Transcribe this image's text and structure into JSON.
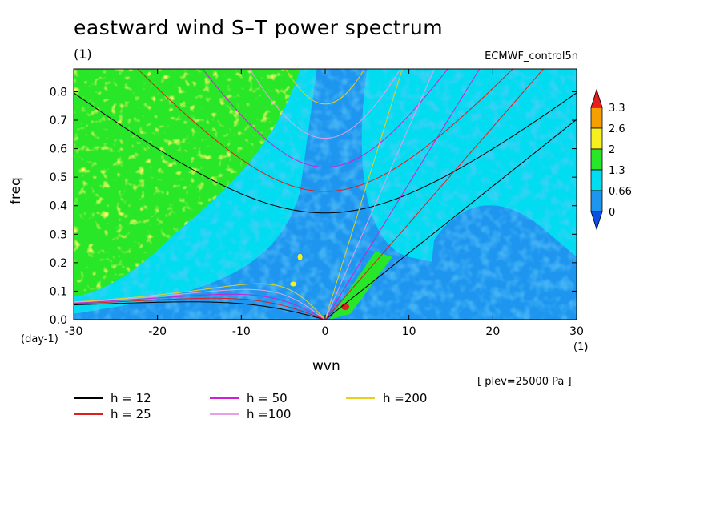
{
  "header": {
    "title": "eastward wind S–T power spectrum",
    "subtitle": "(1)",
    "dataset": "ECMWF_control5n",
    "plev_note": "[ plev=25000 Pa ]"
  },
  "chart_data": {
    "type": "heatmap",
    "title": "eastward wind S–T power spectrum",
    "xlabel": "wvn",
    "ylabel": "freq",
    "x_unit": "(1)",
    "y_unit": "(day-1)",
    "xlim": [
      -30,
      30
    ],
    "ylim": [
      0,
      0.88
    ],
    "xticks": [
      -30,
      -20,
      -10,
      0,
      10,
      20,
      30
    ],
    "xtick_labels": [
      "-30",
      "-20",
      "-10",
      "0",
      "10",
      "20",
      "30"
    ],
    "yticks": [
      0.0,
      0.1,
      0.2,
      0.3,
      0.4,
      0.5,
      0.6,
      0.7,
      0.8
    ],
    "ytick_labels": [
      "0.0",
      "0.1",
      "0.2",
      "0.3",
      "0.4",
      "0.5",
      "0.6",
      "0.7",
      "0.8"
    ],
    "colorbar": {
      "levels": [
        0,
        0.66,
        1.3,
        2,
        2.6,
        3.3
      ],
      "labels": [
        "0",
        "0.66",
        "1.3",
        "2",
        "2.6",
        "3.3"
      ],
      "colors": [
        "#0a50e6",
        "#1e96f0",
        "#00dcf0",
        "#28e628",
        "#f5f01e",
        "#f5a000",
        "#e61e1e"
      ]
    },
    "series": [
      {
        "name": "h = 12",
        "equivalent_depth": 12,
        "color": "#000000"
      },
      {
        "name": "h = 25",
        "equivalent_depth": 25,
        "color": "#e01e1e"
      },
      {
        "name": "h = 50",
        "equivalent_depth": 50,
        "color": "#d21ed2"
      },
      {
        "name": "h =100",
        "equivalent_depth": 100,
        "color": "#e6a0e6"
      },
      {
        "name": "h =200",
        "equivalent_depth": 200,
        "color": "#e6d21e"
      }
    ]
  }
}
